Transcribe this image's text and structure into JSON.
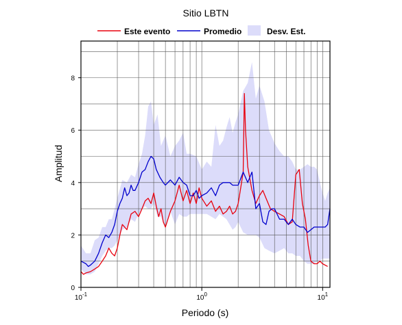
{
  "chart_data": {
    "type": "line",
    "title": "Sitio LBTN",
    "xlabel": "Periodo (s)",
    "ylabel": "Amplitud",
    "x_scale": "log",
    "xlim": [
      0.1,
      11.5
    ],
    "ylim": [
      0,
      9.4
    ],
    "x_ticks": [
      {
        "value": 0.1,
        "base": "10",
        "exp": "-1"
      },
      {
        "value": 1,
        "base": "10",
        "exp": "0"
      },
      {
        "value": 10,
        "base": "10",
        "exp": "1"
      }
    ],
    "y_ticks": [
      0,
      2,
      4,
      6,
      8
    ],
    "grid": true,
    "legend_position": "top",
    "legend": [
      {
        "name": "Este evento",
        "color": "#e8000d",
        "kind": "line"
      },
      {
        "name": "Promedio",
        "color": "#0000cc",
        "kind": "line"
      },
      {
        "name": "Desv. Est.",
        "color": "#dcdcfa",
        "kind": "band"
      }
    ],
    "series": [
      {
        "name": "Este evento",
        "color": "#e8000d",
        "x": [
          0.1,
          0.105,
          0.11,
          0.12,
          0.13,
          0.14,
          0.15,
          0.16,
          0.17,
          0.18,
          0.19,
          0.2,
          0.21,
          0.22,
          0.24,
          0.26,
          0.28,
          0.3,
          0.32,
          0.34,
          0.36,
          0.38,
          0.4,
          0.42,
          0.44,
          0.46,
          0.48,
          0.5,
          0.55,
          0.6,
          0.65,
          0.7,
          0.75,
          0.8,
          0.85,
          0.9,
          0.95,
          1.0,
          1.1,
          1.2,
          1.3,
          1.4,
          1.5,
          1.6,
          1.7,
          1.8,
          1.9,
          2.0,
          2.1,
          2.2,
          2.25,
          2.3,
          2.4,
          2.6,
          2.8,
          3.0,
          3.2,
          3.4,
          3.7,
          4.0,
          4.4,
          4.8,
          5.2,
          5.6,
          6.0,
          6.4,
          6.8,
          7.2,
          7.6,
          8.0,
          8.5,
          9.0,
          9.5,
          10.0,
          11.0
        ],
        "values": [
          0.6,
          0.5,
          0.55,
          0.6,
          0.7,
          0.8,
          1.0,
          1.2,
          1.5,
          1.3,
          1.2,
          1.5,
          2.0,
          2.4,
          2.2,
          2.8,
          2.9,
          2.7,
          3.0,
          3.3,
          3.4,
          3.2,
          3.6,
          3.1,
          2.7,
          3.0,
          2.5,
          2.3,
          2.9,
          3.3,
          3.9,
          3.3,
          3.7,
          3.2,
          3.6,
          3.2,
          3.8,
          3.4,
          3.1,
          3.3,
          2.9,
          3.1,
          2.8,
          2.9,
          3.1,
          2.8,
          2.9,
          3.2,
          3.8,
          4.4,
          7.4,
          6.0,
          4.6,
          3.7,
          3.2,
          3.5,
          3.7,
          3.4,
          3.0,
          2.9,
          2.8,
          2.7,
          2.4,
          2.5,
          4.3,
          4.5,
          3.2,
          2.6,
          1.6,
          1.0,
          0.9,
          0.9,
          1.0,
          0.9,
          0.8
        ]
      },
      {
        "name": "Promedio",
        "color": "#0000cc",
        "x": [
          0.1,
          0.105,
          0.11,
          0.115,
          0.12,
          0.13,
          0.14,
          0.15,
          0.16,
          0.17,
          0.18,
          0.19,
          0.2,
          0.21,
          0.22,
          0.23,
          0.24,
          0.25,
          0.26,
          0.27,
          0.28,
          0.3,
          0.32,
          0.34,
          0.36,
          0.38,
          0.4,
          0.42,
          0.45,
          0.48,
          0.5,
          0.55,
          0.6,
          0.65,
          0.7,
          0.75,
          0.8,
          0.85,
          0.9,
          0.95,
          1.0,
          1.1,
          1.2,
          1.3,
          1.4,
          1.5,
          1.6,
          1.7,
          1.8,
          2.0,
          2.2,
          2.4,
          2.6,
          2.8,
          3.0,
          3.2,
          3.4,
          3.6,
          3.8,
          4.0,
          4.4,
          4.8,
          5.2,
          5.6,
          6.0,
          6.5,
          7.0,
          7.5,
          8.0,
          8.5,
          9.0,
          9.5,
          10.0,
          10.5,
          11.0,
          11.5
        ],
        "values": [
          1.0,
          0.95,
          0.9,
          0.8,
          0.85,
          1.0,
          1.3,
          1.7,
          2.0,
          1.9,
          2.1,
          2.4,
          2.9,
          3.2,
          3.4,
          3.8,
          3.5,
          3.6,
          3.9,
          3.7,
          3.7,
          4.0,
          4.4,
          4.5,
          4.8,
          5.0,
          4.9,
          4.5,
          4.2,
          4.0,
          3.9,
          4.1,
          3.9,
          4.2,
          4.0,
          3.9,
          3.5,
          3.5,
          3.7,
          3.4,
          3.5,
          3.6,
          3.8,
          3.5,
          3.9,
          4.0,
          4.0,
          4.0,
          3.9,
          3.9,
          4.4,
          4.0,
          4.4,
          3.0,
          3.2,
          2.5,
          2.4,
          2.9,
          3.0,
          3.0,
          2.6,
          2.6,
          2.4,
          2.6,
          2.4,
          2.3,
          2.3,
          2.1,
          2.2,
          2.3,
          2.3,
          2.3,
          2.3,
          2.3,
          2.4,
          3.0
        ]
      },
      {
        "name": "Desv. Est.",
        "color": "#dcdcfa",
        "type": "band",
        "x": [
          0.1,
          0.11,
          0.12,
          0.13,
          0.14,
          0.15,
          0.16,
          0.17,
          0.18,
          0.19,
          0.2,
          0.22,
          0.24,
          0.26,
          0.28,
          0.3,
          0.32,
          0.34,
          0.36,
          0.38,
          0.4,
          0.43,
          0.46,
          0.5,
          0.55,
          0.6,
          0.65,
          0.7,
          0.75,
          0.8,
          0.9,
          1.0,
          1.1,
          1.2,
          1.3,
          1.4,
          1.5,
          1.6,
          1.7,
          1.8,
          1.9,
          2.0,
          2.2,
          2.4,
          2.6,
          2.8,
          3.0,
          3.3,
          3.6,
          4.0,
          4.4,
          4.8,
          5.2,
          5.6,
          6.0,
          6.5,
          7.0,
          7.5,
          8.0,
          8.5,
          9.0,
          9.5,
          10.0,
          10.5,
          11.0,
          11.5
        ],
        "upper": [
          1.6,
          1.3,
          1.3,
          1.8,
          1.9,
          2.3,
          2.3,
          2.6,
          2.6,
          3.0,
          3.4,
          4.1,
          4.0,
          4.3,
          4.2,
          4.7,
          5.1,
          5.8,
          6.9,
          7.1,
          6.2,
          6.6,
          5.4,
          5.8,
          5.0,
          5.4,
          5.6,
          5.9,
          5.1,
          5.1,
          5.0,
          4.5,
          4.8,
          4.6,
          6.2,
          5.4,
          5.6,
          6.1,
          6.5,
          5.9,
          6.3,
          6.6,
          7.5,
          7.8,
          8.6,
          7.2,
          7.7,
          7.1,
          6.0,
          5.5,
          5.2,
          5.0,
          5.0,
          4.8,
          4.5,
          4.5,
          4.6,
          4.7,
          4.6,
          4.6,
          4.5,
          4.0,
          3.6,
          3.3,
          3.6,
          3.8
        ],
        "lower": [
          0.7,
          0.5,
          0.5,
          0.6,
          0.9,
          1.2,
          1.4,
          1.5,
          1.5,
          1.6,
          1.8,
          2.2,
          2.3,
          2.6,
          2.5,
          2.8,
          3.0,
          3.1,
          3.0,
          3.0,
          3.2,
          2.7,
          2.7,
          2.3,
          2.9,
          2.4,
          2.8,
          2.7,
          2.7,
          2.8,
          2.8,
          2.8,
          2.8,
          2.7,
          2.6,
          2.8,
          2.7,
          2.6,
          2.4,
          2.2,
          2.3,
          2.5,
          2.1,
          2.0,
          2.0,
          2.0,
          1.9,
          1.5,
          1.4,
          1.3,
          1.4,
          1.5,
          1.3,
          1.3,
          1.2,
          1.2,
          1.0,
          0.9,
          0.9,
          0.9,
          1.0,
          1.0,
          1.1,
          1.1,
          1.1,
          1.1
        ]
      }
    ]
  }
}
